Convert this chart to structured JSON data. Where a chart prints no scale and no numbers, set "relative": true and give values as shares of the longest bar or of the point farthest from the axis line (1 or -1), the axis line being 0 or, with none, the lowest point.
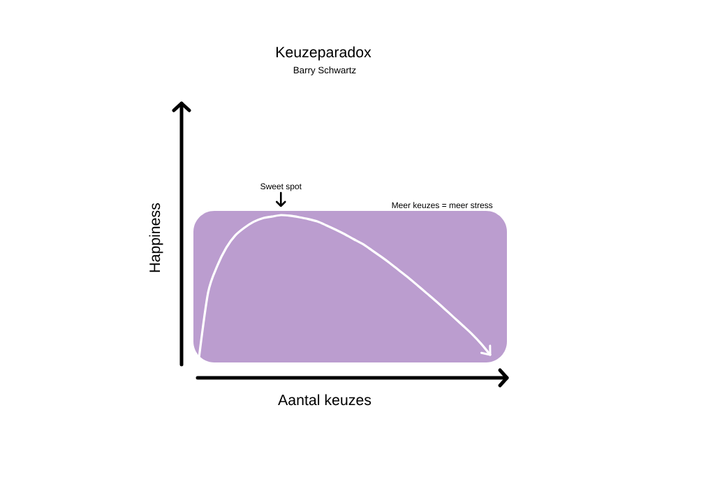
{
  "chart_data": {
    "type": "line",
    "title": "Keuzeparadox",
    "subtitle": "Barry Schwartz",
    "xlabel": "Aantal keuzes",
    "ylabel": "Happiness",
    "annotations": [
      "Sweet spot",
      "Meer keuzes = meer stress"
    ],
    "relative": true,
    "color": "#ffffff",
    "marker": "none",
    "line_style": "solid",
    "categories": [
      null,
      null,
      null,
      null,
      null,
      null,
      null,
      null,
      null,
      null,
      null,
      null,
      null,
      null,
      null,
      null,
      null,
      null,
      null,
      null,
      null,
      null,
      null,
      null,
      null,
      null,
      null,
      null,
      null,
      null,
      null,
      null,
      null
    ],
    "values": [
      0.124,
      0.524,
      0.687,
      0.8,
      0.876,
      0.923,
      0.959,
      0.981,
      0.991,
      1,
      0.996,
      0.987,
      0.976,
      0.961,
      0.937,
      0.911,
      0.883,
      0.852,
      0.822,
      0.784,
      0.745,
      0.704,
      0.66,
      0.616,
      0.569,
      0.521,
      0.473,
      0.423,
      0.372,
      0.321,
      0.269,
      0.21,
      0.142
    ]
  }
}
